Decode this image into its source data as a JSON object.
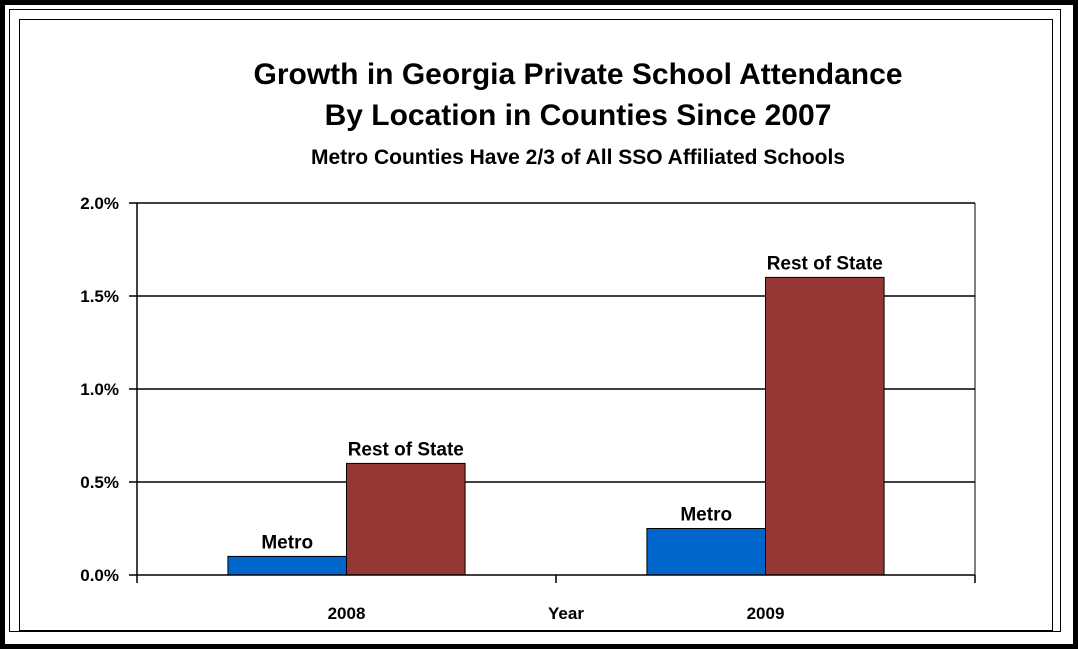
{
  "chart_data": {
    "type": "bar",
    "title": "Growth in Georgia Private School Attendance",
    "title_line2": "By Location in Counties Since 2007",
    "subtitle": "Metro Counties Have 2/3  of All SSO Affiliated Schools",
    "xlabel": "Year",
    "ylabel": "",
    "categories": [
      "2008",
      "2009"
    ],
    "series": [
      {
        "name": "Metro",
        "color": "#0066CC",
        "values": [
          0.1,
          0.25
        ]
      },
      {
        "name": "Rest of State",
        "color": "#953735",
        "values": [
          0.6,
          1.6
        ]
      }
    ],
    "data_labels": [
      [
        "Metro",
        "Metro"
      ],
      [
        "Rest of State",
        "Rest of State"
      ]
    ],
    "ylim": [
      0,
      2.0
    ],
    "yticks": [
      0.0,
      0.5,
      1.0,
      1.5,
      2.0
    ],
    "ytick_labels": [
      "0.0%",
      "0.5%",
      "1.0%",
      "1.5%",
      "2.0%"
    ],
    "grid": true,
    "legend": "none"
  }
}
